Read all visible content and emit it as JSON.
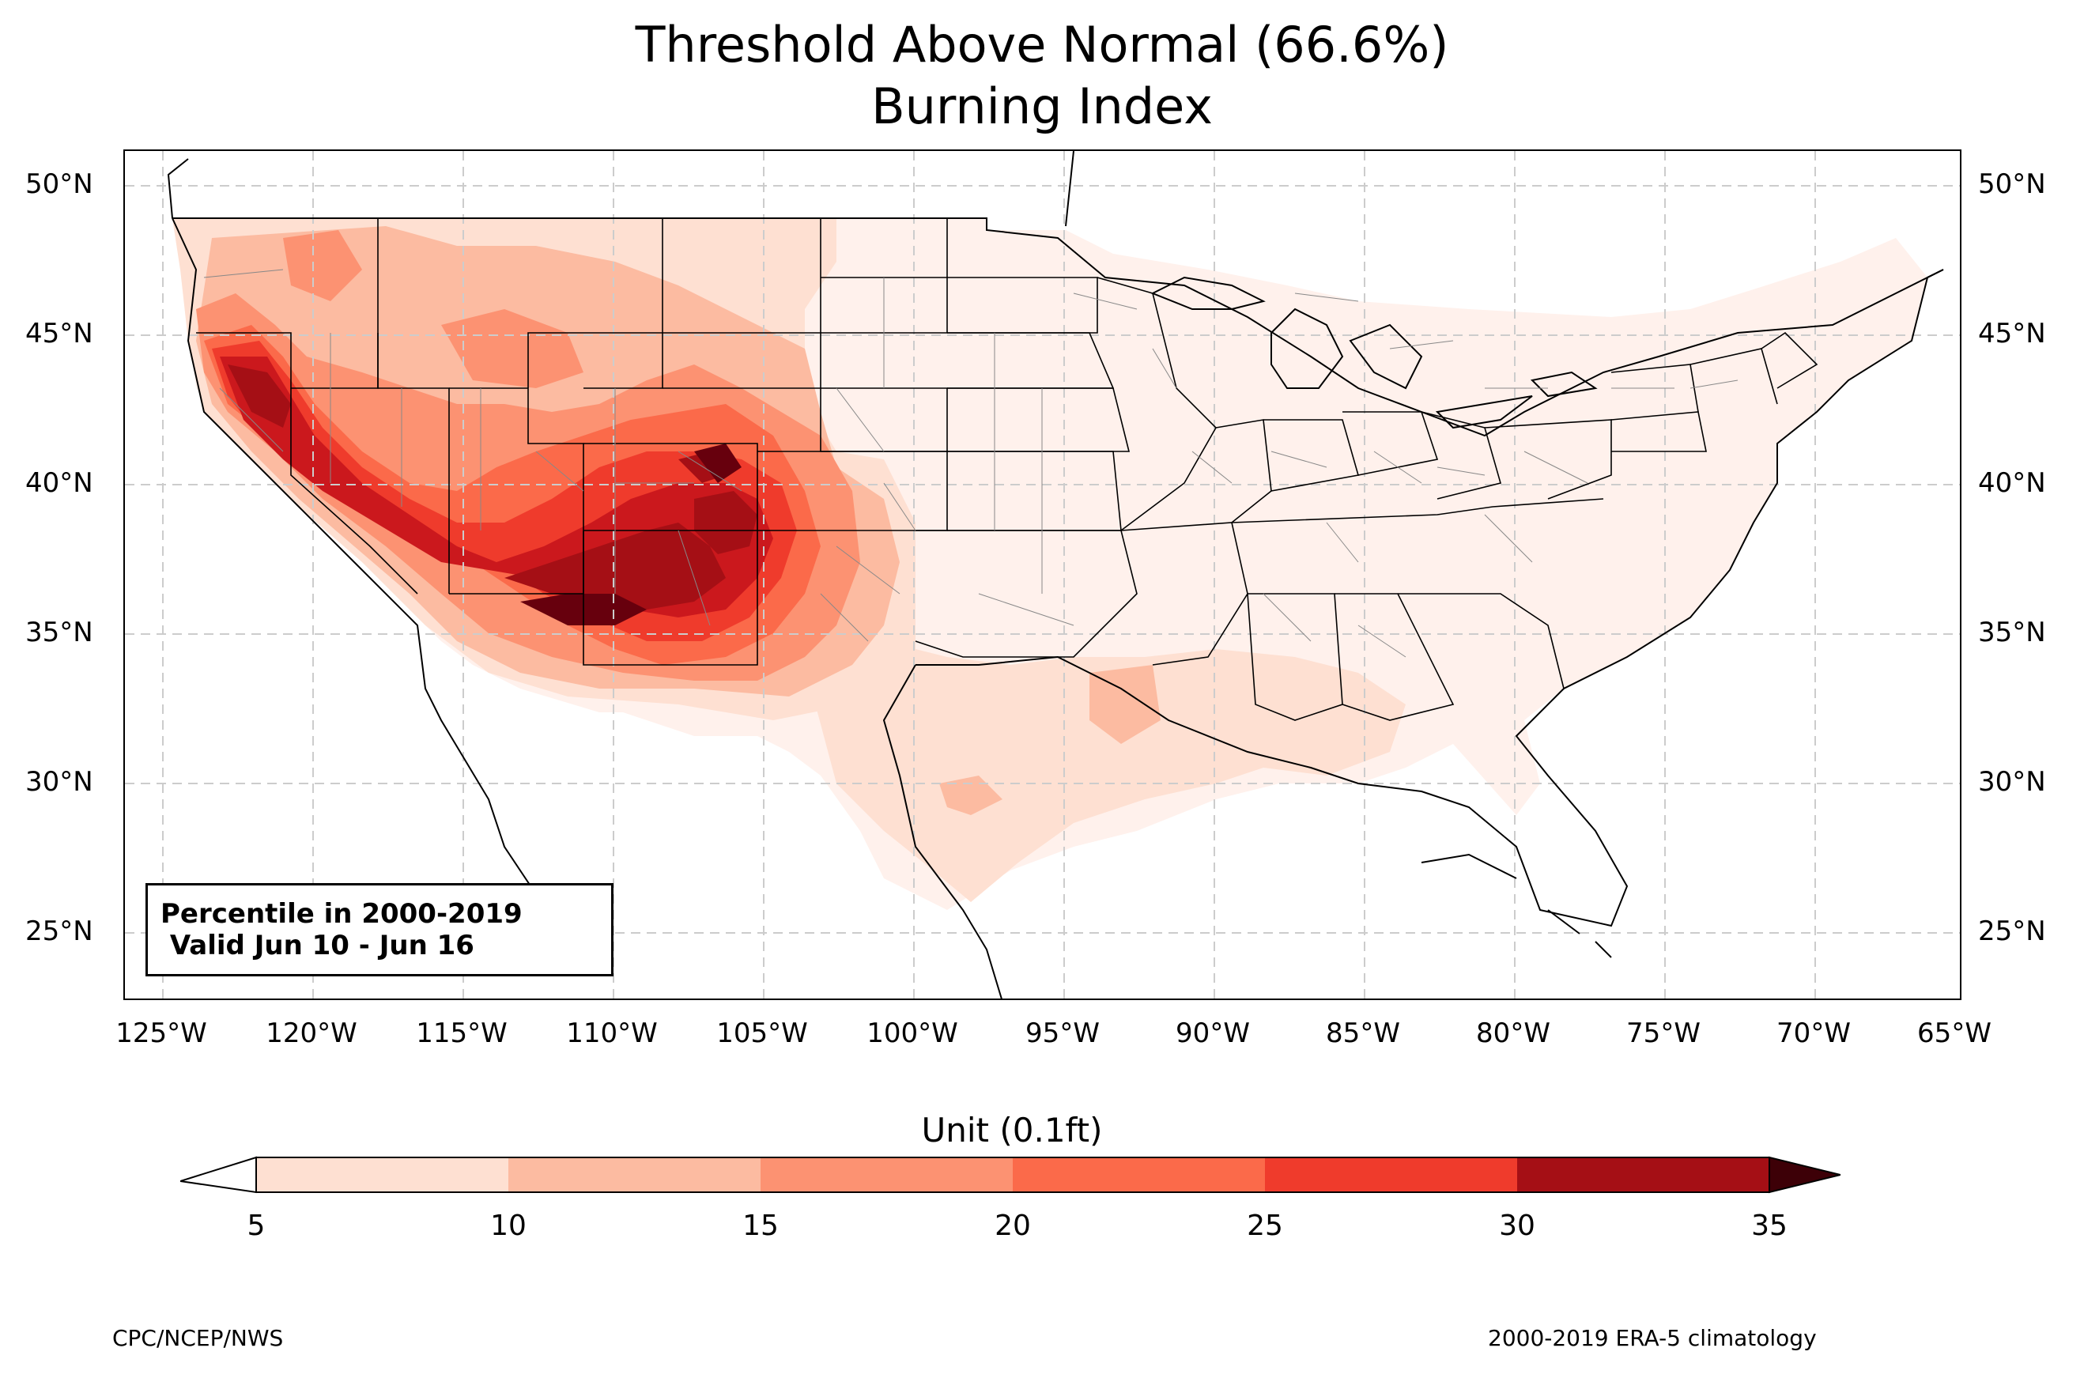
{
  "title_line1": "Threshold Above Normal (66.6%)",
  "title_line2": "Burning Index",
  "info_box": {
    "line1": "Percentile in 2000-2019",
    "line2": " Valid Jun 10 - Jun 16"
  },
  "lat_labels": [
    "50°N",
    "45°N",
    "40°N",
    "35°N",
    "30°N",
    "25°N"
  ],
  "lon_labels": [
    "125°W",
    "120°W",
    "115°W",
    "110°W",
    "105°W",
    "100°W",
    "95°W",
    "90°W",
    "85°W",
    "80°W",
    "75°W",
    "70°W",
    "65°W"
  ],
  "colorbar": {
    "title": "Unit (0.1ft)",
    "ticks": [
      "5",
      "10",
      "15",
      "20",
      "25",
      "30",
      "35"
    ],
    "colors": [
      "#fee0d2",
      "#fcbba1",
      "#fc9272",
      "#fb6a4a",
      "#ef3b2c",
      "#cb181d",
      "#a50f15",
      "#67000d"
    ],
    "under_color": "#ffffff",
    "over_color": "#3d0007"
  },
  "credit_left": "CPC/NCEP/NWS",
  "credit_right": "2000-2019 ERA-5 climatology",
  "colors": {
    "state_lines": "#000000",
    "county_lines": "#888888",
    "gridlines": "#cccccc"
  }
}
